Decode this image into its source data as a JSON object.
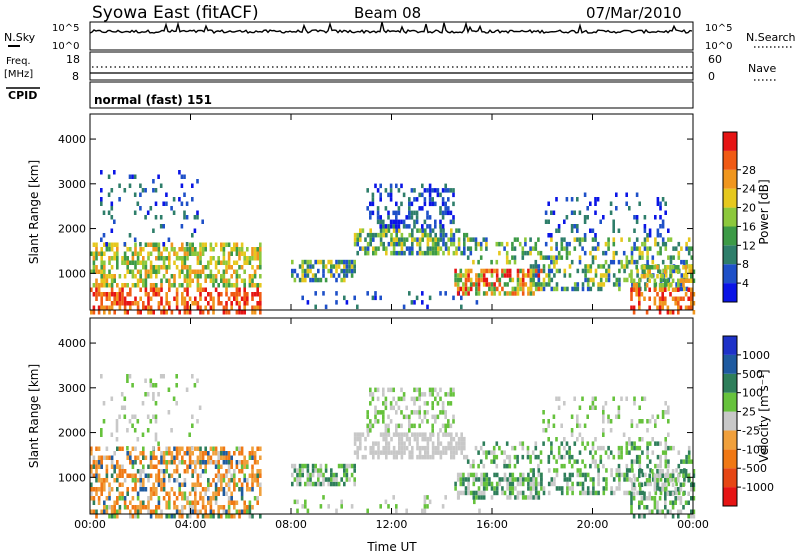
{
  "header": {
    "title": "Syowa East (fitACF)",
    "beam": "Beam 08",
    "date": "07/Mar/2010"
  },
  "panels": {
    "nsky": {
      "label": "N.Sky",
      "right_label": "N.Search",
      "ticks": [
        "10^5",
        "10^0"
      ]
    },
    "freq": {
      "label_line1": "Freq.",
      "label_line2": "[MHz]",
      "right_label": "Nave",
      "left_ticks": [
        "18",
        "8"
      ],
      "right_ticks": [
        "60",
        "0"
      ]
    },
    "cpid": {
      "label": "CPID",
      "value": "normal (fast) 151"
    }
  },
  "chart_data": [
    {
      "type": "heatmap",
      "name": "power",
      "ylabel": "Slant Range [km]",
      "xlabel": "",
      "x_ticks": [
        "00:00",
        "04:00",
        "08:00",
        "12:00",
        "16:00",
        "20:00",
        "00:00"
      ],
      "y_ticks": [
        1000,
        2000,
        3000,
        4000
      ],
      "ylim": [
        180,
        4560
      ],
      "colorbar": {
        "label": "Power [dB]",
        "tick_labels": [
          "4",
          "8",
          "12",
          "16",
          "20",
          "24",
          "28"
        ],
        "colors": [
          "#0a14e6",
          "#1e50c8",
          "#2e7e6a",
          "#3c9a46",
          "#8cc83c",
          "#e6c81e",
          "#f0961e",
          "#f05a14",
          "#e61414"
        ]
      }
    },
    {
      "type": "heatmap",
      "name": "velocity",
      "ylabel": "Slant Range [km]",
      "xlabel": "Time UT",
      "x_ticks": [
        "00:00",
        "04:00",
        "08:00",
        "12:00",
        "16:00",
        "20:00",
        "00:00"
      ],
      "y_ticks": [
        1000,
        2000,
        3000,
        4000
      ],
      "ylim": [
        180,
        4560
      ],
      "colorbar": {
        "label": "Velocity [m s⁻¹]",
        "tick_labels": [
          "1000",
          "500",
          "100",
          "25",
          "-25",
          "-100",
          "-500",
          "-1000"
        ],
        "colors": [
          "#1e32c8",
          "#1e5aa0",
          "#2e7e5a",
          "#66c23c",
          "#c8c8c8",
          "#f0a03c",
          "#f07814",
          "#e64614",
          "#e61414"
        ]
      }
    }
  ]
}
